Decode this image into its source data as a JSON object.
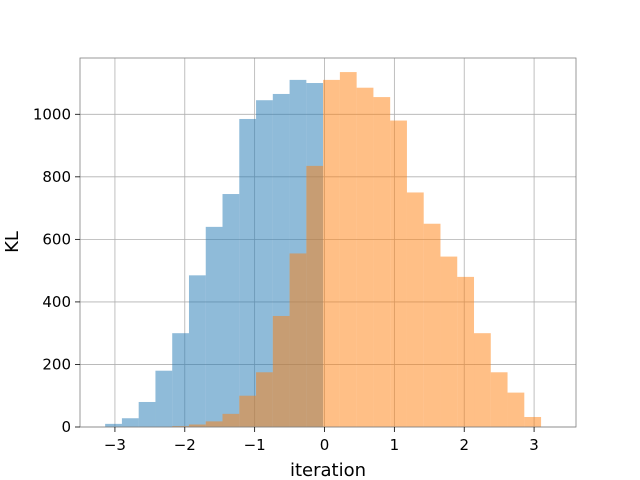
{
  "chart_data": {
    "type": "bar",
    "title": "",
    "xlabel": "iteration",
    "ylabel": "KL",
    "xlim": [
      -3.5,
      3.6
    ],
    "ylim": [
      0,
      1180
    ],
    "xticks": [
      -3,
      -2,
      -1,
      0,
      1,
      2,
      3
    ],
    "xtick_labels": [
      "−3",
      "−2",
      "−1",
      "0",
      "1",
      "2",
      "3"
    ],
    "yticks": [
      0,
      200,
      400,
      600,
      800,
      1000
    ],
    "ytick_labels": [
      "0",
      "200",
      "400",
      "600",
      "800",
      "1000"
    ],
    "grid": true,
    "legend": "none",
    "bar_opacity": 0.5,
    "series": [
      {
        "color": "#1f77b4",
        "bin_edges": [
          -3.14,
          -2.9,
          -2.66,
          -2.42,
          -2.18,
          -1.94,
          -1.7,
          -1.46,
          -1.22,
          -0.98,
          -0.74,
          -0.5,
          -0.26,
          -0.02
        ],
        "values": [
          10,
          28,
          80,
          180,
          300,
          485,
          640,
          745,
          985,
          1045,
          1065,
          1110,
          1100
        ]
      },
      {
        "color": "#ff7f0e",
        "bin_edges": [
          -2.18,
          -1.94,
          -1.7,
          -1.46,
          -1.22,
          -0.98,
          -0.74,
          -0.5,
          -0.26,
          -0.02,
          0.22,
          0.46,
          0.7,
          0.94,
          1.18,
          1.42,
          1.66,
          1.9,
          2.14,
          2.38,
          2.62,
          2.86,
          3.1
        ],
        "values": [
          3,
          8,
          18,
          42,
          100,
          175,
          355,
          555,
          835,
          1110,
          1135,
          1085,
          1055,
          980,
          750,
          650,
          545,
          480,
          300,
          175,
          110,
          32
        ]
      }
    ]
  }
}
